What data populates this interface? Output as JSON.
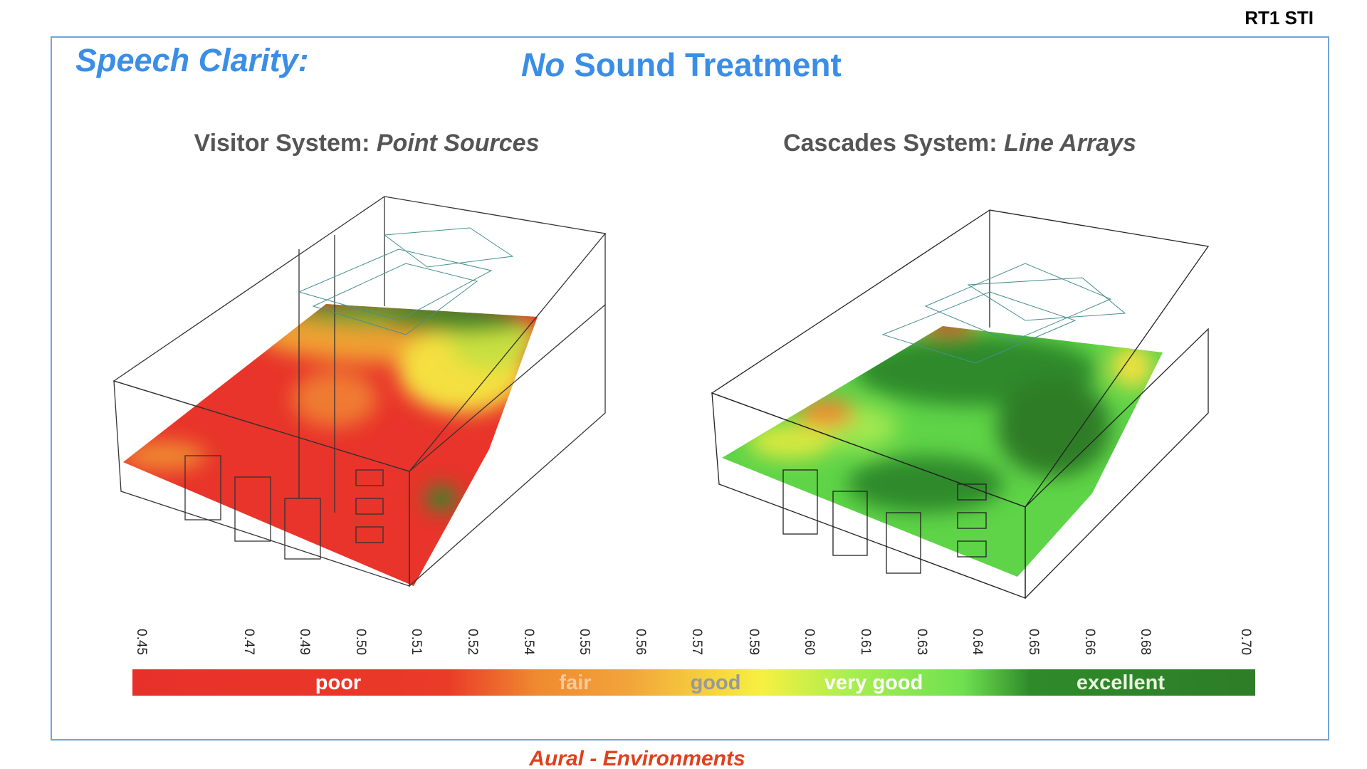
{
  "header": {
    "tag": "RT1  STI"
  },
  "title": "Speech Clarity:",
  "subtitle": {
    "lead": "No",
    "rest": "Sound Treatment"
  },
  "panels": [
    {
      "label": "Visitor System:",
      "detail": "Point Sources"
    },
    {
      "label": "Cascades System:",
      "detail": "Line Arrays"
    }
  ],
  "legend": {
    "ticks": [
      "0.45",
      "0.47",
      "0.49",
      "0.50",
      "0.51",
      "0.52",
      "0.54",
      "0.55",
      "0.56",
      "0.57",
      "0.59",
      "0.60",
      "0.61",
      "0.63",
      "0.64",
      "0.65",
      "0.66",
      "0.68",
      "0.70"
    ],
    "bands": [
      "poor",
      "fair",
      "good",
      "very good",
      "excellent"
    ]
  },
  "footer": "Aural - Environments"
}
